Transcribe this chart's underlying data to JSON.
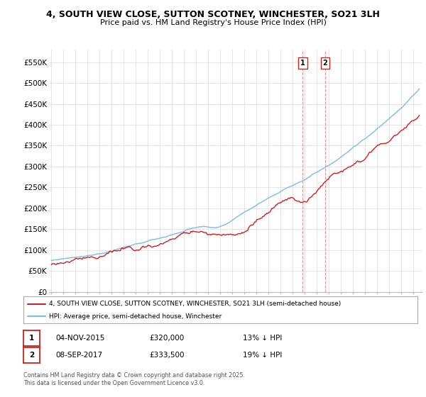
{
  "title": "4, SOUTH VIEW CLOSE, SUTTON SCOTNEY, WINCHESTER, SO21 3LH",
  "subtitle": "Price paid vs. HM Land Registry's House Price Index (HPI)",
  "ylabel_ticks": [
    "£0",
    "£50K",
    "£100K",
    "£150K",
    "£200K",
    "£250K",
    "£300K",
    "£350K",
    "£400K",
    "£450K",
    "£500K",
    "£550K"
  ],
  "ytick_values": [
    0,
    50000,
    100000,
    150000,
    200000,
    250000,
    300000,
    350000,
    400000,
    450000,
    500000,
    550000
  ],
  "ylim": [
    0,
    580000
  ],
  "hpi_color": "#7bbce8",
  "price_color": "#cc2222",
  "marker1_x": 2015.84,
  "marker2_x": 2017.69,
  "legend1": "4, SOUTH VIEW CLOSE, SUTTON SCOTNEY, WINCHESTER, SO21 3LH (semi-detached house)",
  "legend2": "HPI: Average price, semi-detached house, Winchester",
  "table_row1": [
    "1",
    "04-NOV-2015",
    "£320,000",
    "13% ↓ HPI"
  ],
  "table_row2": [
    "2",
    "08-SEP-2017",
    "£333,500",
    "19% ↓ HPI"
  ],
  "footer": "Contains HM Land Registry data © Crown copyright and database right 2025.\nThis data is licensed under the Open Government Licence v3.0.",
  "background_color": "#ffffff",
  "grid_color": "#e0e0e0"
}
